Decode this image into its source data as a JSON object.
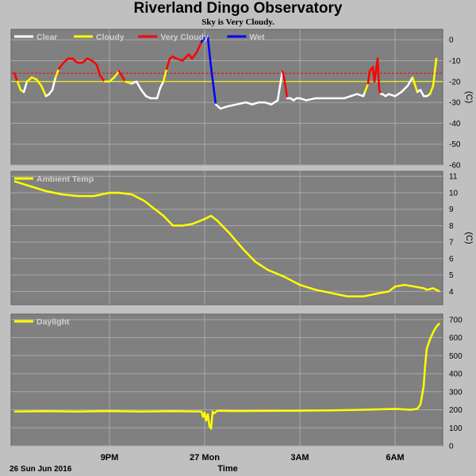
{
  "title": "Riverland Dingo Observatory",
  "subtitle": "Sky is Very Cloudy.",
  "x_axis": {
    "label": "Time",
    "date_label": "26 Sun Jun 2016",
    "ticks": [
      "9PM",
      "27 Mon",
      "3AM",
      "6AM"
    ],
    "tick_hours": [
      21,
      24,
      27,
      30
    ],
    "range_hours": [
      17.9,
      31.5
    ]
  },
  "colors": {
    "plot_bg": "#808080",
    "frame_bg": "#c0c0c0",
    "grid": "#a8a8a8",
    "clear": "#ffffff",
    "cloudy": "#ffff00",
    "very_cloudy": "#ff0000",
    "wet": "#0000ff",
    "temp": "#ffff00",
    "daylight": "#ffff00",
    "threshold": "#ff0000"
  },
  "chart_data": [
    {
      "type": "line",
      "name": "sky",
      "ylabel": "(C)",
      "ylim": [
        -60,
        5
      ],
      "yticks": [
        0,
        -10,
        -20,
        -30,
        -40,
        -50,
        -60
      ],
      "thresholds": [
        -16,
        -20
      ],
      "legend": [
        "Clear",
        "Cloudy",
        "Very Cloudy",
        "Wet"
      ],
      "series": [
        {
          "x": [
            18.0,
            18.1,
            18.2,
            18.3,
            18.4,
            18.55,
            18.7,
            18.85,
            19.0,
            19.1,
            19.2,
            19.3,
            19.4,
            19.55,
            19.7,
            19.85,
            19.9,
            20.0,
            20.15,
            20.3,
            20.45,
            20.6,
            20.7,
            20.85,
            21.0,
            21.15,
            21.3,
            21.5,
            21.7,
            21.85,
            22.0,
            22.15,
            22.3,
            22.5,
            22.6,
            22.7,
            22.8,
            22.9,
            23.0,
            23.1,
            23.3,
            23.5,
            23.6,
            23.75,
            23.9,
            24.0,
            24.1,
            24.2,
            24.35,
            24.5,
            24.7,
            25.0,
            25.3,
            25.5,
            25.7,
            25.9,
            26.1,
            26.3,
            26.45,
            26.5,
            26.6,
            26.7,
            26.8,
            26.9,
            27.0,
            27.2,
            27.5,
            27.8,
            28.1,
            28.4,
            28.6,
            28.8,
            29.0,
            29.05,
            29.15,
            29.2,
            29.3,
            29.35,
            29.45,
            29.5,
            29.55,
            29.6,
            29.7,
            29.8,
            30.0,
            30.2,
            30.4,
            30.55,
            30.7,
            30.8,
            30.9,
            31.0,
            31.1,
            31.2,
            31.3
          ],
          "y": [
            -16,
            -20,
            -24,
            -25,
            -20,
            -18,
            -19,
            -22,
            -27,
            -26,
            -24,
            -18,
            -14,
            -11,
            -9,
            -9,
            -10,
            -11,
            -11,
            -9,
            -10,
            -12,
            -17,
            -20,
            -20,
            -18,
            -15,
            -20,
            -21,
            -20,
            -24,
            -27,
            -28,
            -28,
            -23,
            -20,
            -14,
            -9,
            -8,
            -9,
            -10,
            -7,
            -9,
            -6,
            -1,
            1,
            1,
            -13,
            -31,
            -33,
            -32,
            -31,
            -30,
            -31,
            -30,
            -30,
            -31,
            -29,
            -15,
            -18,
            -28,
            -28,
            -29,
            -28,
            -28,
            -29,
            -28,
            -28,
            -28,
            -28,
            -27,
            -26,
            -27,
            -25,
            -21,
            -15,
            -13,
            -20,
            -9,
            -24,
            -26,
            -26,
            -27,
            -26,
            -27,
            -25,
            -22,
            -18,
            -25,
            -24,
            -27,
            -27,
            -26,
            -22,
            -9
          ],
          "state": [
            "very_cloudy",
            "cloudy",
            "cloudy",
            "clear",
            "cloudy",
            "cloudy",
            "cloudy",
            "cloudy",
            "clear",
            "clear",
            "clear",
            "cloudy",
            "very_cloudy",
            "very_cloudy",
            "very_cloudy",
            "very_cloudy",
            "very_cloudy",
            "very_cloudy",
            "very_cloudy",
            "very_cloudy",
            "very_cloudy",
            "very_cloudy",
            "very_cloudy",
            "cloudy",
            "cloudy",
            "cloudy",
            "very_cloudy",
            "cloudy",
            "clear",
            "clear",
            "clear",
            "clear",
            "clear",
            "clear",
            "clear",
            "cloudy",
            "very_cloudy",
            "very_cloudy",
            "very_cloudy",
            "very_cloudy",
            "very_cloudy",
            "very_cloudy",
            "very_cloudy",
            "very_cloudy",
            "wet",
            "wet",
            "wet",
            "wet",
            "clear",
            "clear",
            "clear",
            "clear",
            "clear",
            "clear",
            "clear",
            "clear",
            "clear",
            "clear",
            "very_cloudy",
            "very_cloudy",
            "clear",
            "clear",
            "clear",
            "clear",
            "clear",
            "clear",
            "clear",
            "clear",
            "clear",
            "clear",
            "clear",
            "clear",
            "clear",
            "cloudy",
            "very_cloudy",
            "very_cloudy",
            "very_cloudy",
            "very_cloudy",
            "very_cloudy",
            "very_cloudy",
            "clear",
            "clear",
            "clear",
            "clear",
            "clear",
            "clear",
            "clear",
            "cloudy",
            "clear",
            "clear",
            "clear",
            "clear",
            "cloudy",
            "cloudy",
            "very_cloudy"
          ]
        }
      ]
    },
    {
      "type": "line",
      "name": "ambient",
      "ylabel": "(C)",
      "ylim": [
        3.2,
        11.3
      ],
      "yticks": [
        11,
        10,
        9,
        8,
        7,
        6,
        5,
        4
      ],
      "legend": [
        "Ambient Temp"
      ],
      "series": [
        {
          "x": [
            18.0,
            18.5,
            19.0,
            19.5,
            20.0,
            20.5,
            21.0,
            21.3,
            21.7,
            22.1,
            22.3,
            22.7,
            23.0,
            23.3,
            23.6,
            24.0,
            24.2,
            24.4,
            24.8,
            25.2,
            25.6,
            26.0,
            26.5,
            27.0,
            27.5,
            28.0,
            28.5,
            29.0,
            29.5,
            29.8,
            30.0,
            30.3,
            30.6,
            30.9,
            31.0,
            31.2,
            31.4
          ],
          "y": [
            10.7,
            10.4,
            10.1,
            9.9,
            9.8,
            9.8,
            10.0,
            10.0,
            9.9,
            9.5,
            9.2,
            8.6,
            8.0,
            8.0,
            8.1,
            8.4,
            8.6,
            8.3,
            7.5,
            6.6,
            5.8,
            5.3,
            4.9,
            4.4,
            4.1,
            3.9,
            3.7,
            3.7,
            3.9,
            4.0,
            4.3,
            4.4,
            4.3,
            4.2,
            4.1,
            4.2,
            4.0
          ]
        }
      ]
    },
    {
      "type": "line",
      "name": "daylight",
      "ylim": [
        0,
        730
      ],
      "yticks": [
        700,
        600,
        500,
        400,
        300,
        200,
        100,
        0
      ],
      "legend": [
        "Daylight"
      ],
      "series": [
        {
          "x": [
            18.0,
            19.0,
            20.0,
            21.0,
            22.0,
            23.0,
            23.9,
            23.95,
            24.0,
            24.05,
            24.1,
            24.15,
            24.2,
            24.25,
            24.3,
            24.4,
            25.0,
            26.0,
            27.0,
            28.0,
            29.0,
            30.0,
            30.5,
            30.7,
            30.8,
            30.9,
            30.95,
            31.0,
            31.1,
            31.2,
            31.3,
            31.4
          ],
          "y": [
            190,
            192,
            190,
            193,
            190,
            192,
            190,
            160,
            185,
            140,
            175,
            110,
            95,
            190,
            180,
            195,
            193,
            194,
            195,
            197,
            200,
            205,
            200,
            205,
            230,
            330,
            450,
            540,
            590,
            630,
            660,
            680
          ]
        }
      ]
    }
  ]
}
